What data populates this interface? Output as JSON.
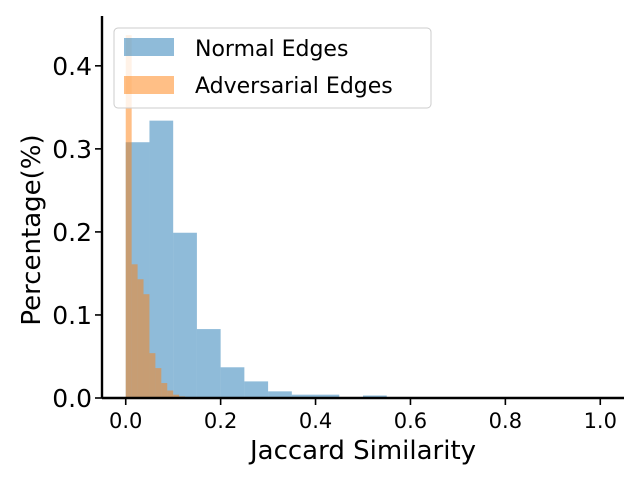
{
  "chart_data": {
    "type": "bar",
    "title": "",
    "xlabel": "Jaccard Similarity",
    "ylabel": "Percentage(%)",
    "xlim": [
      -0.05,
      1.05
    ],
    "ylim": [
      0,
      0.46
    ],
    "xticks": [
      0.0,
      0.2,
      0.4,
      0.6,
      0.8,
      1.0
    ],
    "xtick_labels": [
      "0.0",
      "0.2",
      "0.4",
      "0.6",
      "0.8",
      "1.0"
    ],
    "yticks": [
      0.0,
      0.1,
      0.2,
      0.3,
      0.4
    ],
    "ytick_labels": [
      "0.0",
      "0.1",
      "0.2",
      "0.3",
      "0.4"
    ],
    "legend": {
      "placement": "upper-left"
    },
    "grid": false,
    "series": [
      {
        "name": "Normal Edges",
        "color": "#1f77b4",
        "opacity": 0.5,
        "bin_edges": [
          0.0,
          0.05,
          0.1,
          0.15,
          0.2,
          0.25,
          0.3,
          0.35,
          0.4,
          0.45,
          0.5,
          0.55,
          0.6,
          0.65,
          0.7,
          0.75,
          0.8,
          0.85,
          0.9,
          0.95,
          1.0
        ],
        "values": [
          0.308,
          0.334,
          0.199,
          0.083,
          0.037,
          0.02,
          0.008,
          0.004,
          0.004,
          0.0,
          0.003,
          0.0,
          0.0,
          0.0,
          0.0,
          0.0,
          0.0,
          0.0,
          0.0,
          0.0
        ]
      },
      {
        "name": "Adversarial Edges",
        "color": "#ff7f0e",
        "opacity": 0.5,
        "bin_edges": [
          0.0,
          0.0125,
          0.025,
          0.0375,
          0.05,
          0.0625,
          0.075,
          0.0875,
          0.1,
          0.1125,
          0.125
        ],
        "values": [
          0.437,
          0.161,
          0.143,
          0.125,
          0.054,
          0.036,
          0.018,
          0.009,
          0.004,
          0.002
        ]
      }
    ]
  }
}
